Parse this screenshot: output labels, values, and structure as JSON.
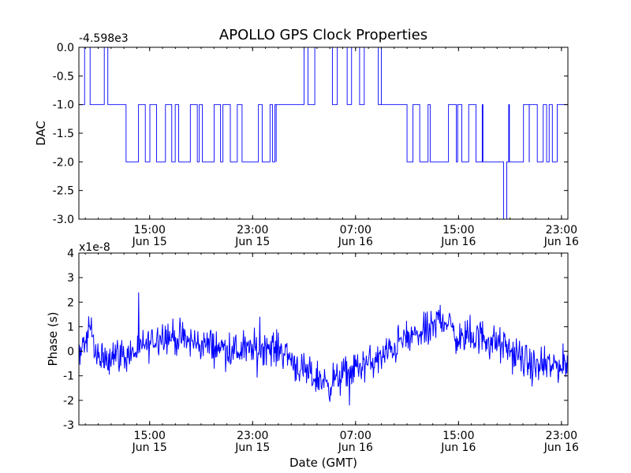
{
  "chart_data": [
    {
      "type": "line",
      "title": "APOLLO GPS Clock Properties",
      "ylabel": "DAC",
      "xlabel": "",
      "offset_label": "-4.598e3",
      "xlim": [
        "Jun 15 09:30",
        "Jun 16 23:30"
      ],
      "ylim": [
        -3.0,
        0.0
      ],
      "yticks": [
        "0.0",
        "-0.5",
        "-1.0",
        "-1.5",
        "-2.0",
        "-2.5",
        "-3.0"
      ],
      "xticks": [
        {
          "time": "15:00",
          "date": "Jun 15"
        },
        {
          "time": "23:00",
          "date": "Jun 15"
        },
        {
          "time": "07:00",
          "date": "Jun 16"
        },
        {
          "time": "15:00",
          "date": "Jun 16"
        },
        {
          "time": "23:00",
          "date": "Jun 16"
        }
      ],
      "color": "#0000ff",
      "series": [
        {
          "segments": [
            {
              "from": "Jun 15 09:30",
              "to": "Jun 15 11:45",
              "level": -1.0,
              "jumps_to": 0.0
            },
            {
              "from": "Jun 15 11:45",
              "to": "Jun 15 13:10",
              "level": -1.0
            },
            {
              "from": "Jun 15 13:10",
              "to": "Jun 16 00:50",
              "level": -2.0,
              "jumps_to": -1.0
            },
            {
              "from": "Jun 16 00:50",
              "to": "Jun 16 03:00",
              "level": -1.0
            },
            {
              "from": "Jun 16 03:00",
              "to": "Jun 16 09:00",
              "level": 0.0,
              "jumps_to": -1.0
            },
            {
              "from": "Jun 16 09:00",
              "to": "Jun 16 11:00",
              "level": -1.0
            },
            {
              "from": "Jun 16 11:00",
              "to": "Jun 16 20:30",
              "level": -2.0,
              "jumps_to": -1.0,
              "dip_to": -3.0,
              "dip_at": "Jun 16 18:30"
            },
            {
              "from": "Jun 16 20:30",
              "to": "Jun 16 23:30",
              "level": -1.0,
              "jumps_to": -2.0
            }
          ]
        }
      ]
    },
    {
      "type": "line",
      "title": "",
      "ylabel": "Phase (s)",
      "xlabel": "Date (GMT)",
      "offset_label": "x1e-8",
      "xlim": [
        "Jun 15 09:30",
        "Jun 16 23:30"
      ],
      "ylim": [
        -3,
        4
      ],
      "yticks": [
        "4",
        "3",
        "2",
        "1",
        "0",
        "-1",
        "-2",
        "-3"
      ],
      "xticks": [
        {
          "time": "15:00",
          "date": "Jun 15"
        },
        {
          "time": "23:00",
          "date": "Jun 15"
        },
        {
          "time": "07:00",
          "date": "Jun 16"
        },
        {
          "time": "15:00",
          "date": "Jun 16"
        },
        {
          "time": "23:00",
          "date": "Jun 16"
        }
      ],
      "color": "#0000ff",
      "series": [
        {
          "x": [
            "Jun 15 09:30",
            "Jun 15 10:30",
            "Jun 15 11:00",
            "Jun 15 12:00",
            "Jun 15 13:00",
            "Jun 15 14:00",
            "Jun 15 16:00",
            "Jun 15 18:00",
            "Jun 15 20:00",
            "Jun 15 22:00",
            "Jun 16 00:00",
            "Jun 16 01:30",
            "Jun 16 03:00",
            "Jun 16 05:00",
            "Jun 16 07:00",
            "Jun 16 09:00",
            "Jun 16 10:30",
            "Jun 16 12:00",
            "Jun 16 13:00",
            "Jun 16 13:40",
            "Jun 16 15:00",
            "Jun 16 17:00",
            "Jun 16 19:00",
            "Jun 16 21:00",
            "Jun 16 23:30"
          ],
          "values": [
            0.0,
            0.8,
            -0.5,
            0.0,
            -0.2,
            0.0,
            0.7,
            0.4,
            0.2,
            0.0,
            0.2,
            0.0,
            -0.9,
            -1.3,
            -0.7,
            -0.3,
            0.4,
            0.7,
            0.9,
            1.5,
            0.5,
            0.6,
            0.0,
            -0.7,
            -0.5
          ],
          "noise": 0.35
        }
      ]
    }
  ]
}
